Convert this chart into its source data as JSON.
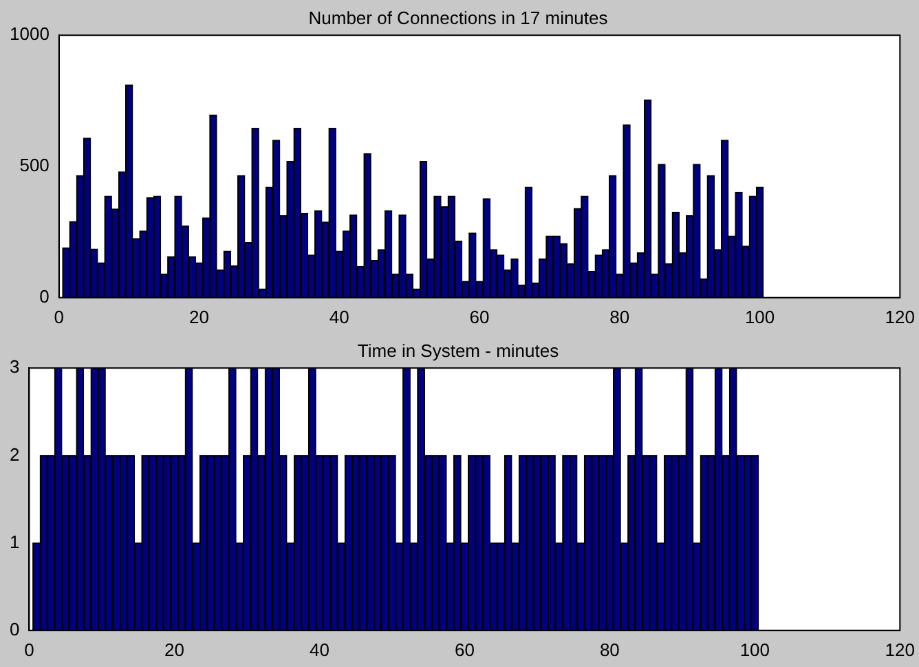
{
  "chart_data": [
    {
      "type": "bar",
      "title": "Number of Connections in 17 minutes",
      "x": [
        1,
        2,
        3,
        4,
        5,
        6,
        7,
        8,
        9,
        10,
        11,
        12,
        13,
        14,
        15,
        16,
        17,
        18,
        19,
        20,
        21,
        22,
        23,
        24,
        25,
        26,
        27,
        28,
        29,
        30,
        31,
        32,
        33,
        34,
        35,
        36,
        37,
        38,
        39,
        40,
        41,
        42,
        43,
        44,
        45,
        46,
        47,
        48,
        49,
        50,
        51,
        52,
        53,
        54,
        55,
        56,
        57,
        58,
        59,
        60,
        61,
        62,
        63,
        64,
        65,
        66,
        67,
        68,
        69,
        70,
        71,
        72,
        73,
        74,
        75,
        76,
        77,
        78,
        79,
        80,
        81,
        82,
        83,
        84,
        85,
        86,
        87,
        88,
        89,
        90,
        91,
        92,
        93,
        94,
        95,
        96,
        97,
        98,
        99,
        100
      ],
      "series": [
        {
          "color": "#000080",
          "values": [
            190,
            290,
            465,
            608,
            185,
            133,
            387,
            338,
            479,
            810,
            225,
            254,
            381,
            387,
            90,
            156,
            387,
            273,
            156,
            133,
            304,
            696,
            106,
            177,
            121,
            465,
            210,
            646,
            33,
            421,
            600,
            312,
            519,
            646,
            321,
            162,
            331,
            288,
            646,
            177,
            254,
            315,
            119,
            548,
            142,
            183,
            331,
            90,
            315,
            90,
            33,
            519,
            148,
            387,
            346,
            387,
            215,
            62,
            246,
            62,
            377,
            183,
            162,
            106,
            148,
            48,
            421,
            56,
            148,
            235,
            235,
            206,
            129,
            340,
            387,
            100,
            162,
            183,
            465,
            90,
            658,
            133,
            171,
            754,
            90,
            508,
            129,
            325,
            171,
            312,
            508,
            71,
            465,
            183,
            600,
            235,
            402,
            196,
            387,
            421
          ]
        }
      ],
      "xlim": [
        0,
        120
      ],
      "xticks": [
        0,
        20,
        40,
        60,
        80,
        100,
        120
      ],
      "ylim": [
        0,
        1000
      ],
      "yticks": [
        0,
        500,
        1000
      ],
      "grid": false,
      "legend": false
    },
    {
      "type": "bar",
      "title": "Time in System - minutes",
      "x": [
        1,
        2,
        3,
        4,
        5,
        6,
        7,
        8,
        9,
        10,
        11,
        12,
        13,
        14,
        15,
        16,
        17,
        18,
        19,
        20,
        21,
        22,
        23,
        24,
        25,
        26,
        27,
        28,
        29,
        30,
        31,
        32,
        33,
        34,
        35,
        36,
        37,
        38,
        39,
        40,
        41,
        42,
        43,
        44,
        45,
        46,
        47,
        48,
        49,
        50,
        51,
        52,
        53,
        54,
        55,
        56,
        57,
        58,
        59,
        60,
        61,
        62,
        63,
        64,
        65,
        66,
        67,
        68,
        69,
        70,
        71,
        72,
        73,
        74,
        75,
        76,
        77,
        78,
        79,
        80,
        81,
        82,
        83,
        84,
        85,
        86,
        87,
        88,
        89,
        90,
        91,
        92,
        93,
        94,
        95,
        96,
        97,
        98,
        99,
        100
      ],
      "series": [
        {
          "color": "#000080",
          "values": [
            1,
            2,
            2,
            3,
            2,
            2,
            3,
            2,
            3,
            3,
            2,
            2,
            2,
            2,
            1,
            2,
            2,
            2,
            2,
            2,
            2,
            3,
            1,
            2,
            2,
            2,
            2,
            3,
            1,
            2,
            3,
            2,
            3,
            3,
            2,
            1,
            2,
            2,
            3,
            2,
            2,
            2,
            1,
            2,
            2,
            2,
            2,
            2,
            2,
            2,
            1,
            3,
            1,
            3,
            2,
            2,
            2,
            1,
            2,
            1,
            2,
            2,
            2,
            1,
            1,
            2,
            1,
            2,
            2,
            2,
            2,
            2,
            1,
            2,
            2,
            1,
            2,
            2,
            2,
            2,
            3,
            1,
            2,
            3,
            2,
            2,
            1,
            2,
            2,
            2,
            3,
            1,
            2,
            2,
            3,
            2,
            3,
            2,
            2,
            2
          ]
        }
      ],
      "xlim": [
        0,
        120
      ],
      "xticks": [
        0,
        20,
        40,
        60,
        80,
        100,
        120
      ],
      "ylim": [
        0,
        3
      ],
      "yticks": [
        0,
        1,
        2,
        3
      ],
      "grid": false,
      "legend": false
    }
  ]
}
